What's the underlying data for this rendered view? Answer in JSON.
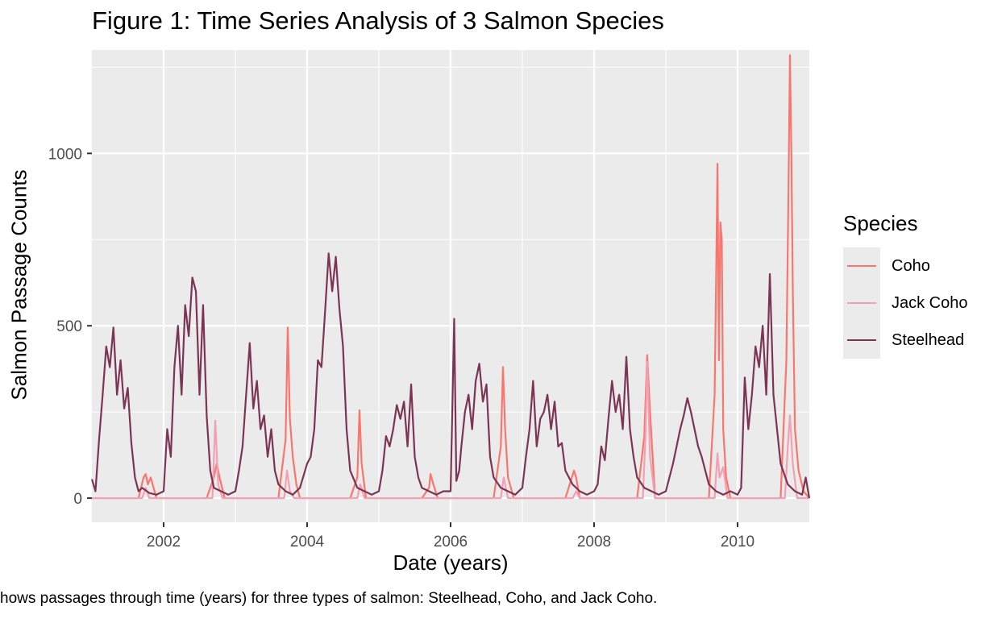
{
  "chart_data": {
    "type": "line",
    "title": "Figure 1: Time Series Analysis of 3 Salmon Species",
    "xlabel": "Date (years)",
    "ylabel": "Salmon Passage Counts",
    "caption": "hows passages through time (years) for three types of salmon: Steelhead, Coho, and Jack Coho.",
    "xlim": [
      2001.0,
      2011.0
    ],
    "ylim": [
      -70,
      1300
    ],
    "x_ticks": [
      2002,
      2004,
      2006,
      2008,
      2010
    ],
    "x_tick_labels": [
      "2002",
      "2004",
      "2006",
      "2008",
      "2010"
    ],
    "y_ticks": [
      0,
      500,
      1000
    ],
    "y_tick_labels": [
      "0",
      "500",
      "1000"
    ],
    "grid": true,
    "legend": {
      "title": "Species",
      "position": "right"
    },
    "series": [
      {
        "name": "Coho",
        "color": "#f8766d",
        "x": [
          2001.0,
          2001.65,
          2001.72,
          2001.75,
          2001.78,
          2001.82,
          2001.9,
          2002.6,
          2002.7,
          2002.74,
          2002.78,
          2002.85,
          2003.6,
          2003.7,
          2003.73,
          2003.76,
          2003.8,
          2003.85,
          2003.9,
          2004.6,
          2004.7,
          2004.73,
          2004.76,
          2004.82,
          2005.6,
          2005.7,
          2005.72,
          2005.76,
          2005.82,
          2006.6,
          2006.7,
          2006.73,
          2006.76,
          2006.8,
          2006.88,
          2007.6,
          2007.72,
          2007.75,
          2007.8,
          2008.6,
          2008.7,
          2008.74,
          2008.78,
          2008.85,
          2009.6,
          2009.68,
          2009.7,
          2009.72,
          2009.74,
          2009.76,
          2009.78,
          2009.8,
          2009.84,
          2009.9,
          2010.6,
          2010.68,
          2010.71,
          2010.73,
          2010.75,
          2010.77,
          2010.8,
          2010.85,
          2010.92,
          2011.0
        ],
        "values": [
          0,
          0,
          60,
          70,
          40,
          60,
          0,
          0,
          60,
          100,
          60,
          0,
          0,
          170,
          495,
          230,
          120,
          40,
          0,
          0,
          60,
          255,
          100,
          0,
          0,
          30,
          70,
          40,
          0,
          0,
          150,
          380,
          200,
          60,
          0,
          0,
          80,
          60,
          0,
          0,
          180,
          415,
          250,
          0,
          0,
          300,
          620,
          970,
          400,
          800,
          750,
          200,
          60,
          0,
          0,
          400,
          900,
          1285,
          1000,
          600,
          200,
          80,
          20,
          0
        ]
      },
      {
        "name": "Jack Coho",
        "color": "#f4a0b4",
        "x": [
          2001.0,
          2001.7,
          2001.75,
          2001.8,
          2002.68,
          2002.72,
          2002.76,
          2002.82,
          2003.68,
          2003.72,
          2003.76,
          2003.82,
          2004.7,
          2004.74,
          2004.8,
          2006.7,
          2006.74,
          2006.8,
          2007.7,
          2007.75,
          2007.8,
          2008.68,
          2008.72,
          2008.74,
          2008.78,
          2008.85,
          2009.68,
          2009.72,
          2009.75,
          2009.8,
          2009.86,
          2010.66,
          2010.7,
          2010.73,
          2010.77,
          2010.83,
          2011.0
        ],
        "values": [
          0,
          0,
          30,
          0,
          0,
          225,
          40,
          0,
          0,
          80,
          20,
          0,
          0,
          40,
          0,
          0,
          60,
          0,
          0,
          20,
          0,
          0,
          200,
          395,
          120,
          0,
          0,
          130,
          60,
          90,
          0,
          0,
          150,
          240,
          100,
          0,
          0
        ]
      },
      {
        "name": "Steelhead",
        "color": "#7b3552",
        "x": [
          2001.0,
          2001.05,
          2001.1,
          2001.15,
          2001.2,
          2001.25,
          2001.3,
          2001.35,
          2001.4,
          2001.45,
          2001.5,
          2001.55,
          2001.6,
          2001.65,
          2001.7,
          2001.8,
          2001.9,
          2002.0,
          2002.05,
          2002.1,
          2002.15,
          2002.2,
          2002.25,
          2002.3,
          2002.35,
          2002.4,
          2002.45,
          2002.5,
          2002.55,
          2002.6,
          2002.65,
          2002.7,
          2002.8,
          2002.9,
          2003.0,
          2003.05,
          2003.1,
          2003.15,
          2003.2,
          2003.25,
          2003.3,
          2003.35,
          2003.4,
          2003.45,
          2003.5,
          2003.55,
          2003.6,
          2003.7,
          2003.8,
          2003.9,
          2004.0,
          2004.05,
          2004.1,
          2004.15,
          2004.2,
          2004.25,
          2004.3,
          2004.35,
          2004.4,
          2004.45,
          2004.5,
          2004.55,
          2004.6,
          2004.7,
          2004.8,
          2004.9,
          2005.0,
          2005.05,
          2005.1,
          2005.15,
          2005.2,
          2005.25,
          2005.3,
          2005.35,
          2005.4,
          2005.45,
          2005.5,
          2005.55,
          2005.6,
          2005.7,
          2005.8,
          2005.9,
          2006.0,
          2006.05,
          2006.08,
          2006.12,
          2006.15,
          2006.2,
          2006.25,
          2006.3,
          2006.35,
          2006.4,
          2006.45,
          2006.5,
          2006.55,
          2006.6,
          2006.7,
          2006.8,
          2006.9,
          2007.0,
          2007.05,
          2007.1,
          2007.15,
          2007.2,
          2007.25,
          2007.3,
          2007.35,
          2007.4,
          2007.45,
          2007.5,
          2007.55,
          2007.6,
          2007.7,
          2007.8,
          2007.9,
          2008.0,
          2008.05,
          2008.1,
          2008.15,
          2008.2,
          2008.25,
          2008.3,
          2008.35,
          2008.4,
          2008.45,
          2008.5,
          2008.55,
          2008.6,
          2008.7,
          2008.8,
          2008.9,
          2009.0,
          2009.05,
          2009.1,
          2009.15,
          2009.2,
          2009.25,
          2009.3,
          2009.35,
          2009.4,
          2009.45,
          2009.5,
          2009.55,
          2009.6,
          2009.7,
          2009.8,
          2009.9,
          2010.0,
          2010.05,
          2010.1,
          2010.15,
          2010.2,
          2010.25,
          2010.3,
          2010.35,
          2010.4,
          2010.45,
          2010.5,
          2010.55,
          2010.6,
          2010.7,
          2010.8,
          2010.9,
          2010.95,
          2011.0
        ],
        "values": [
          55,
          20,
          170,
          300,
          440,
          380,
          495,
          300,
          400,
          260,
          320,
          160,
          60,
          20,
          30,
          15,
          10,
          20,
          200,
          120,
          380,
          500,
          300,
          560,
          470,
          640,
          600,
          300,
          560,
          240,
          80,
          30,
          20,
          10,
          20,
          80,
          150,
          300,
          450,
          260,
          340,
          200,
          240,
          120,
          200,
          80,
          40,
          20,
          10,
          30,
          100,
          120,
          200,
          400,
          380,
          540,
          710,
          600,
          700,
          550,
          440,
          200,
          80,
          30,
          20,
          10,
          20,
          80,
          180,
          150,
          200,
          270,
          230,
          280,
          150,
          330,
          120,
          60,
          30,
          20,
          10,
          20,
          20,
          520,
          50,
          80,
          150,
          250,
          300,
          200,
          340,
          390,
          280,
          330,
          120,
          60,
          30,
          20,
          10,
          30,
          120,
          200,
          340,
          150,
          230,
          250,
          300,
          200,
          280,
          150,
          160,
          80,
          40,
          20,
          10,
          20,
          40,
          150,
          110,
          230,
          340,
          250,
          300,
          200,
          410,
          200,
          120,
          60,
          30,
          20,
          10,
          20,
          60,
          100,
          150,
          200,
          240,
          290,
          250,
          200,
          150,
          120,
          80,
          40,
          20,
          10,
          20,
          10,
          30,
          350,
          200,
          300,
          440,
          380,
          500,
          300,
          650,
          300,
          200,
          100,
          40,
          20,
          10,
          60,
          0
        ]
      }
    ]
  }
}
